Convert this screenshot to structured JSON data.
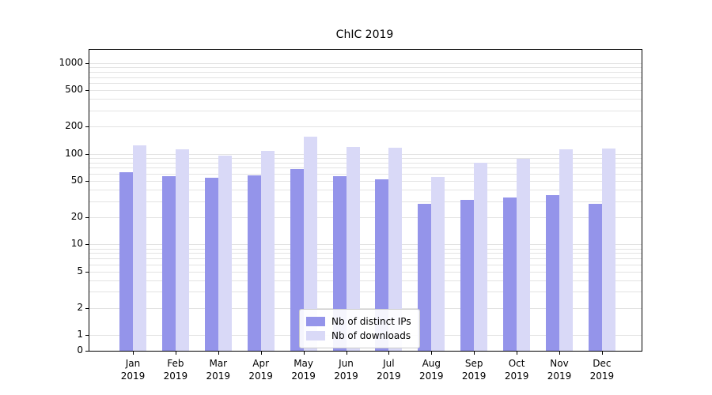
{
  "title": "ChIC 2019",
  "chart_data": {
    "type": "bar",
    "title": "ChIC 2019",
    "categories": [
      "Jan 2019",
      "Feb 2019",
      "Mar 2019",
      "Apr 2019",
      "May 2019",
      "Jun 2019",
      "Jul 2019",
      "Aug 2019",
      "Sep 2019",
      "Oct 2019",
      "Nov 2019",
      "Dec 2019"
    ],
    "series": [
      {
        "name": "Nb of distinct IPs",
        "color": "#9494ea",
        "values": [
          63,
          57,
          54,
          58,
          68,
          57,
          52,
          28,
          31,
          33,
          35,
          28
        ]
      },
      {
        "name": "Nb of downloads",
        "color": "#d9d9f7",
        "values": [
          123,
          112,
          96,
          107,
          155,
          119,
          116,
          55,
          80,
          88,
          112,
          114
        ]
      }
    ],
    "xlabel": "",
    "ylabel": "",
    "yscale": "symlog",
    "yticks": [
      1000,
      500,
      200,
      100,
      50,
      20,
      10,
      5,
      2,
      1,
      0
    ],
    "ylim": [
      0,
      1400
    ],
    "grid": "horizontal log minor gridlines",
    "legend_position": "lower center inside plot",
    "bar_colors": {
      "distinct_ips": "#9494ea",
      "downloads": "#d9d9f7"
    },
    "gridline_color": "#e3e3e3"
  },
  "legend": {
    "items": [
      {
        "label": "Nb of distinct IPs"
      },
      {
        "label": "Nb of downloads"
      }
    ]
  }
}
